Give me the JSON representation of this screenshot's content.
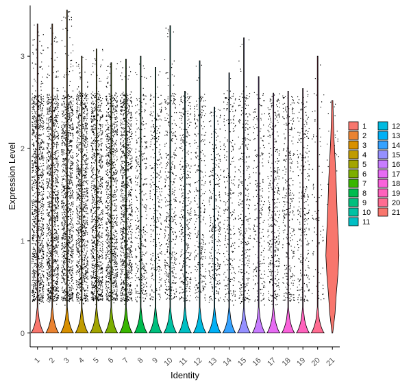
{
  "chart_data": {
    "type": "violin",
    "title": "",
    "xlabel": "Identity",
    "ylabel": "Expression Level",
    "ylim": [
      -0.15,
      3.55
    ],
    "yticks": [
      0,
      1,
      2,
      3
    ],
    "categories": [
      "1",
      "2",
      "3",
      "4",
      "5",
      "6",
      "7",
      "8",
      "9",
      "10",
      "11",
      "12",
      "13",
      "14",
      "15",
      "16",
      "17",
      "18",
      "19",
      "20",
      "21"
    ],
    "colors": [
      "#F8766D",
      "#EA8331",
      "#D89000",
      "#C09B00",
      "#A3A500",
      "#7CAE00",
      "#39B600",
      "#00BB4E",
      "#00BF7D",
      "#00C1A3",
      "#00BFC4",
      "#00BAE0",
      "#00B0F6",
      "#35A2FF",
      "#9590FF",
      "#C77CFF",
      "#E76BF3",
      "#FA62DB",
      "#FF62BC",
      "#FF6C91",
      "#F8766D"
    ],
    "max_values": [
      3.35,
      3.35,
      3.5,
      3.0,
      3.08,
      2.93,
      2.97,
      3.0,
      2.88,
      3.33,
      2.62,
      2.95,
      2.45,
      2.82,
      3.2,
      2.78,
      2.6,
      2.62,
      2.65,
      3.0,
      2.52
    ],
    "point_density": [
      1.0,
      1.0,
      1.0,
      0.95,
      0.9,
      0.9,
      0.9,
      0.35,
      0.3,
      0.4,
      0.35,
      0.3,
      0.28,
      0.25,
      0.3,
      0.22,
      0.35,
      0.3,
      0.25,
      0.08,
      0.05
    ],
    "legend_position": "right",
    "legend_columns": 2,
    "grid": false
  }
}
